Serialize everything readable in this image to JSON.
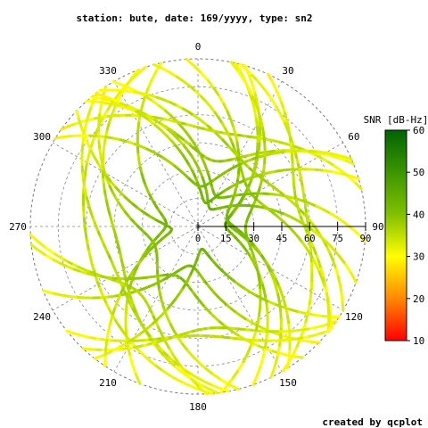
{
  "title": "station: bute, date: 169/yyyy, type: sn2",
  "footer": "created by qcplot",
  "chart_data": {
    "type": "polar-skyplot",
    "azimuth_ticks": [
      0,
      30,
      60,
      90,
      120,
      150,
      180,
      210,
      240,
      270,
      300,
      330
    ],
    "azimuth_labels": [
      "0",
      "30",
      "60",
      "90",
      "120",
      "150",
      "180",
      "210",
      "240",
      "270",
      "300",
      "330"
    ],
    "elevation_axis_ticks": [
      0,
      15,
      30,
      45,
      60,
      75,
      90
    ],
    "elevation_axis_labels": [
      "0",
      "15",
      "30",
      "45",
      "60",
      "75",
      "90"
    ],
    "colorbar": {
      "label": "SNR [dB-Hz]",
      "range": [
        10,
        60
      ],
      "ticks": [
        10,
        20,
        30,
        40,
        50,
        60
      ],
      "tick_labels": [
        "10",
        "20",
        "30",
        "40",
        "50",
        "60"
      ],
      "colors": [
        "#ff0000",
        "#ff8800",
        "#ffff00",
        "#80c000",
        "#006400"
      ]
    },
    "grid": true,
    "tracks_description_free": true
  }
}
